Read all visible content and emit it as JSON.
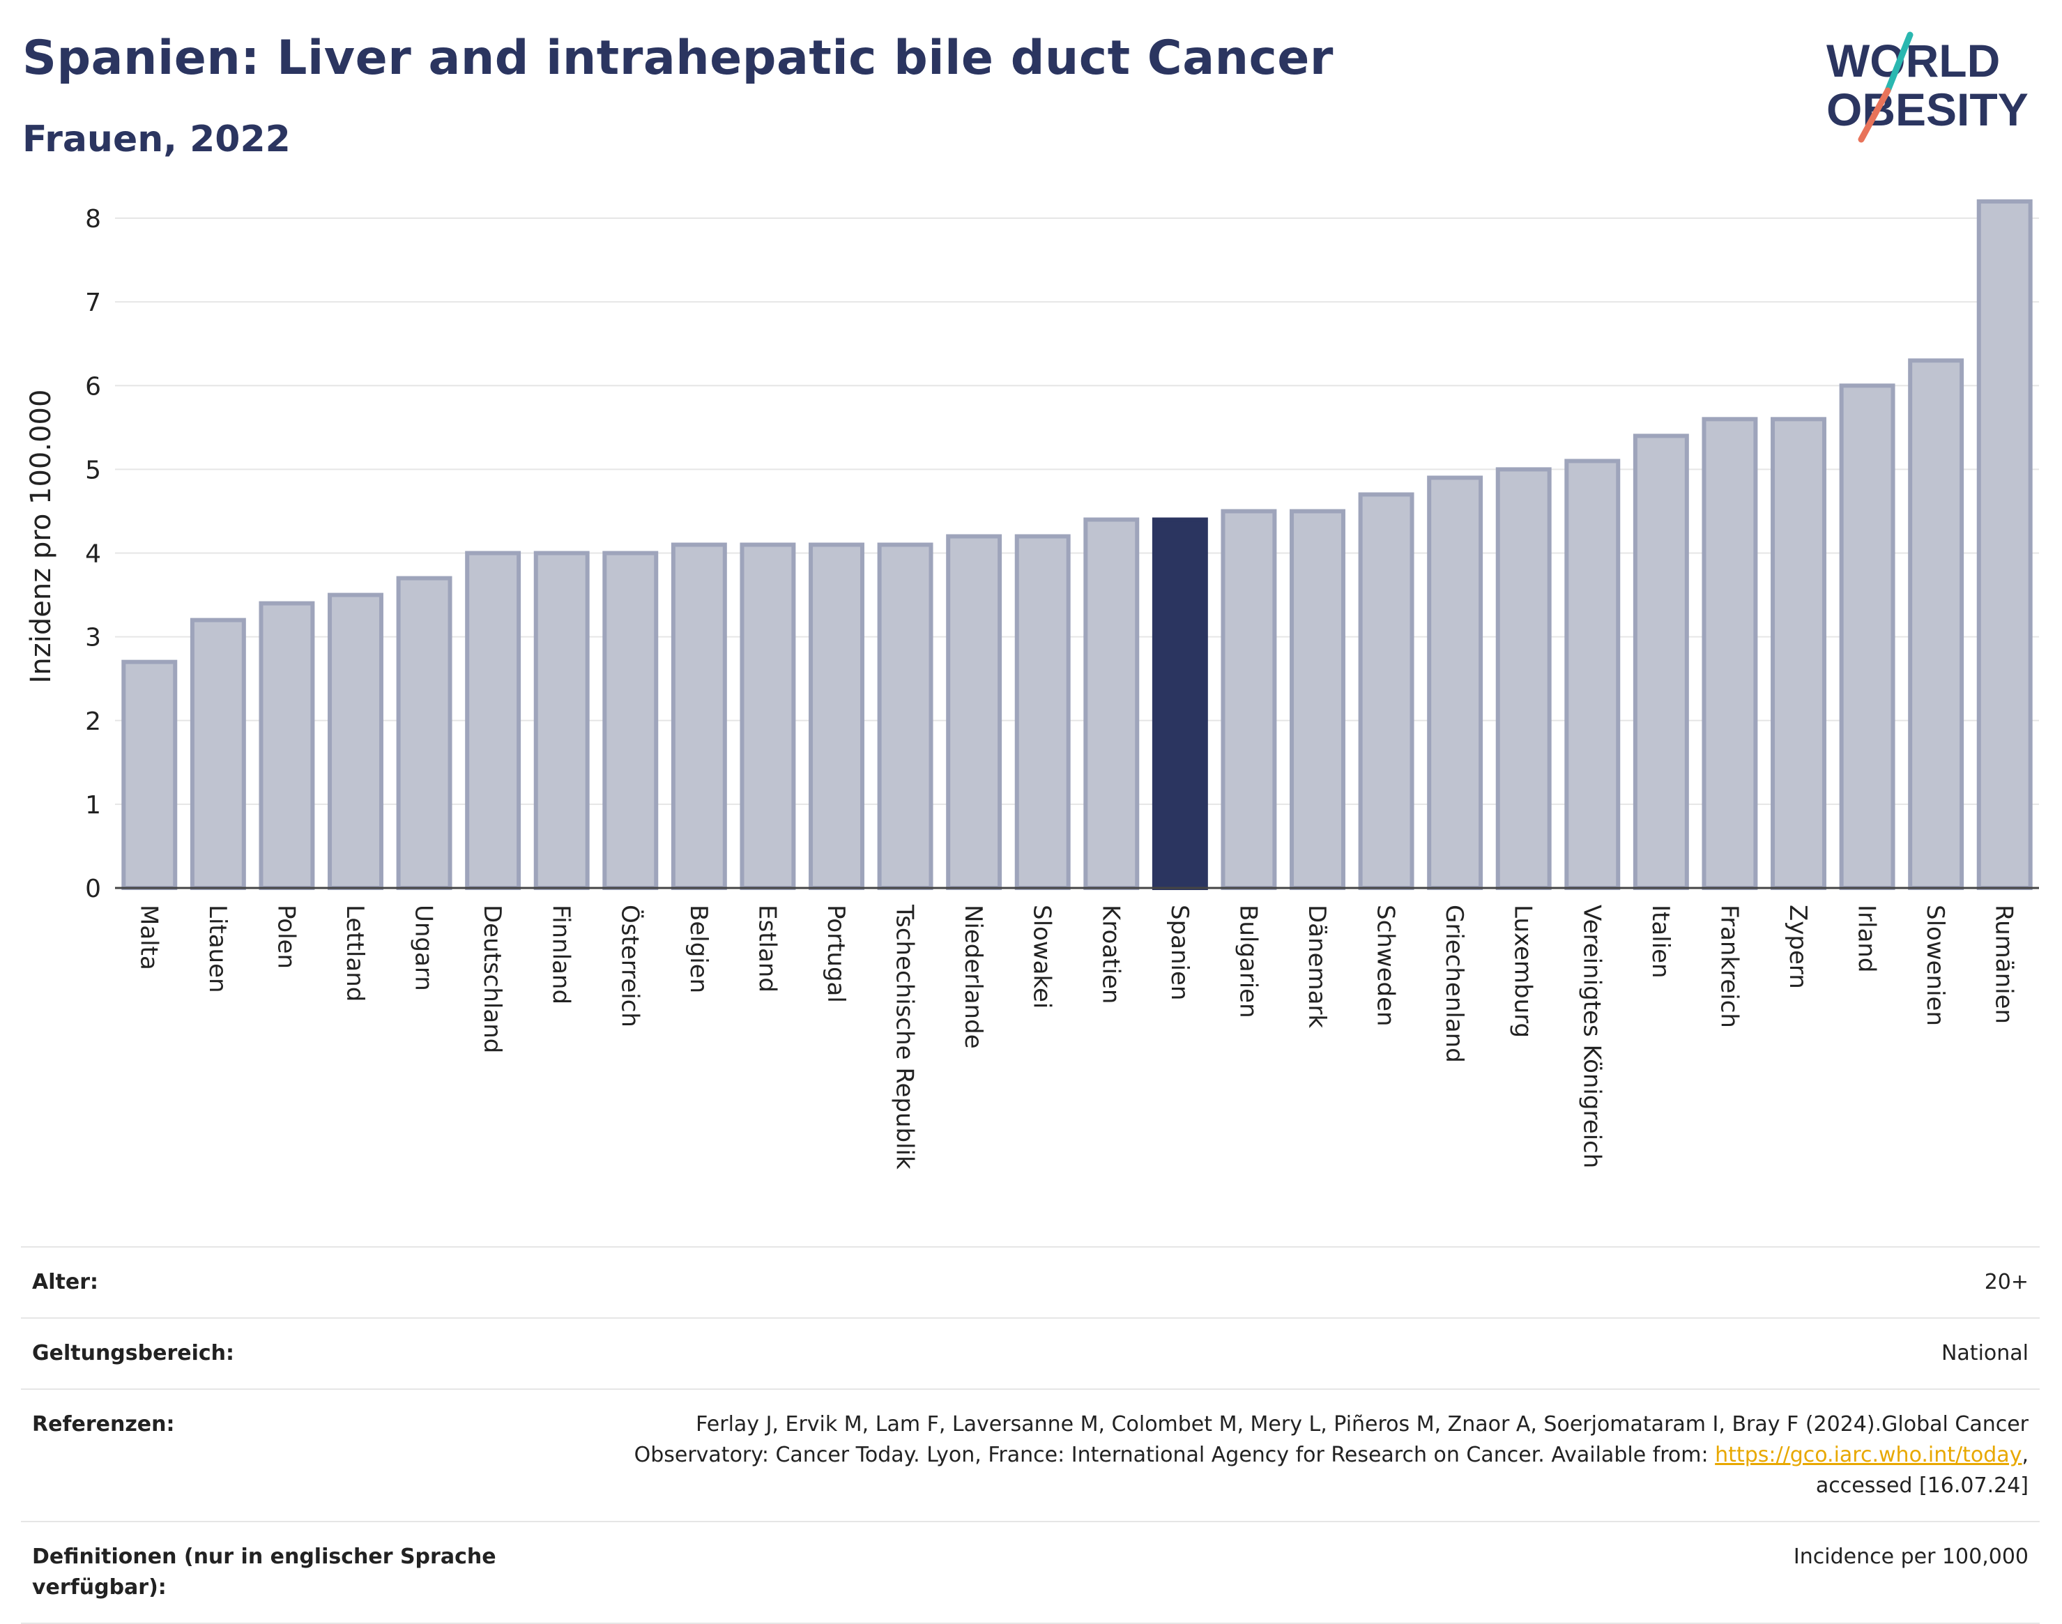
{
  "header": {
    "title": "Spanien: Liver and intrahepatic bile duct Cancer",
    "subtitle": "Frauen, 2022"
  },
  "logo": {
    "line1": "WORLD",
    "line2": "OBESITY",
    "colors": {
      "text": "#2b3560",
      "slash_top": "#2ab7b0",
      "slash_bottom": "#e8735a"
    }
  },
  "colors": {
    "bar": "#bfc3d0",
    "bar_border": "#9ea4bb",
    "highlight": "#2b3560",
    "axis_text": "#222222",
    "grid": "#e6e6e6"
  },
  "chart_data": {
    "type": "bar",
    "ylabel": "Inzidenz pro 100.000",
    "ylim": [
      0,
      8.4
    ],
    "yticks": [
      0,
      1,
      2,
      3,
      4,
      5,
      6,
      7,
      8
    ],
    "grid": true,
    "highlight": "Spanien",
    "categories": [
      "Malta",
      "Litauen",
      "Polen",
      "Lettland",
      "Ungarn",
      "Deutschland",
      "Finnland",
      "Österreich",
      "Belgien",
      "Estland",
      "Portugal",
      "Tschechische Republik",
      "Niederlande",
      "Slowakei",
      "Kroatien",
      "Spanien",
      "Bulgarien",
      "Dänemark",
      "Schweden",
      "Griechenland",
      "Luxemburg",
      "Vereinigtes Königreich",
      "Italien",
      "Frankreich",
      "Zypern",
      "Irland",
      "Slowenien",
      "Rumänien"
    ],
    "values": [
      2.7,
      3.2,
      3.4,
      3.5,
      3.7,
      4.0,
      4.0,
      4.0,
      4.1,
      4.1,
      4.1,
      4.1,
      4.2,
      4.2,
      4.4,
      4.4,
      4.5,
      4.5,
      4.7,
      4.9,
      5.0,
      5.1,
      5.4,
      5.6,
      5.6,
      6.0,
      6.3,
      8.2
    ]
  },
  "meta": {
    "age_label": "Alter:",
    "age_value": "20+",
    "scope_label": "Geltungsbereich:",
    "scope_value": "National",
    "refs_label": "Referenzen:",
    "refs_text_1": "Ferlay J, Ervik M, Lam F, Laversanne M, Colombet M, Mery L, Piñeros M, Znaor A, Soerjomataram I, Bray F (2024).Global Cancer",
    "refs_text_2": "Observatory: Cancer Today. Lyon, France: International Agency for Research on Cancer. Available from: ",
    "refs_link": "https://gco.iarc.who.int/today",
    "refs_text_3": ",",
    "refs_text_4": "accessed [16.07.24]",
    "defs_label": "Definitionen (nur in englischer Sprache verfügbar):",
    "defs_value": "Incidence per 100,000"
  }
}
